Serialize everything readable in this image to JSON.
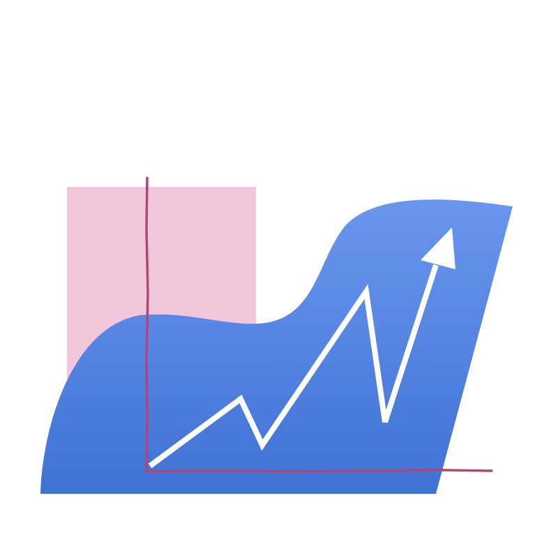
{
  "illustration": {
    "icon": "growth-chart-illustration",
    "colors": {
      "background": "#ffffff",
      "pink_block": "#f2c6da",
      "blob_top": "#6b96ee",
      "blob_bottom": "#3f72d5",
      "axis": "#b0457a",
      "trend_line": "#ffffff"
    },
    "trend": {
      "direction": "up",
      "shape": "zigzag-rising-arrow"
    }
  }
}
